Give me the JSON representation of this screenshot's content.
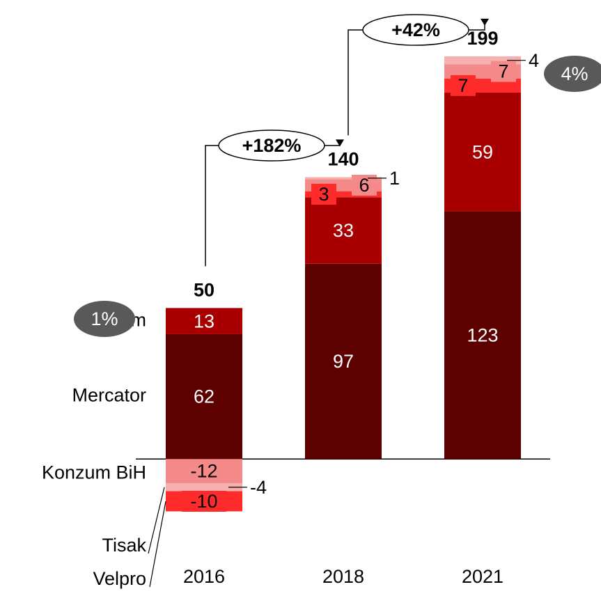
{
  "chart_data": {
    "type": "stacked_bar",
    "categories": [
      "2016",
      "2018",
      "2021"
    ],
    "series": [
      {
        "name": "Mercator",
        "color": "#5c0000",
        "values": [
          62,
          97,
          123
        ]
      },
      {
        "name": "Konzum",
        "color": "#a80000",
        "values": [
          13,
          33,
          59
        ]
      },
      {
        "name": "Velpro",
        "color": "#ff2a2a",
        "values": [
          -10,
          3,
          7
        ]
      },
      {
        "name": "Konzum BiH",
        "color": "#f48a8a",
        "values": [
          -12,
          6,
          7
        ]
      },
      {
        "name": "Tisak",
        "color": "#f7b0b0",
        "values": [
          -4,
          1,
          4
        ]
      }
    ],
    "totals": [
      50,
      140,
      199
    ],
    "growth": [
      "+182%",
      "+42%"
    ],
    "shares": [
      "1%",
      "4%"
    ],
    "ylim": [
      -30,
      210
    ]
  }
}
